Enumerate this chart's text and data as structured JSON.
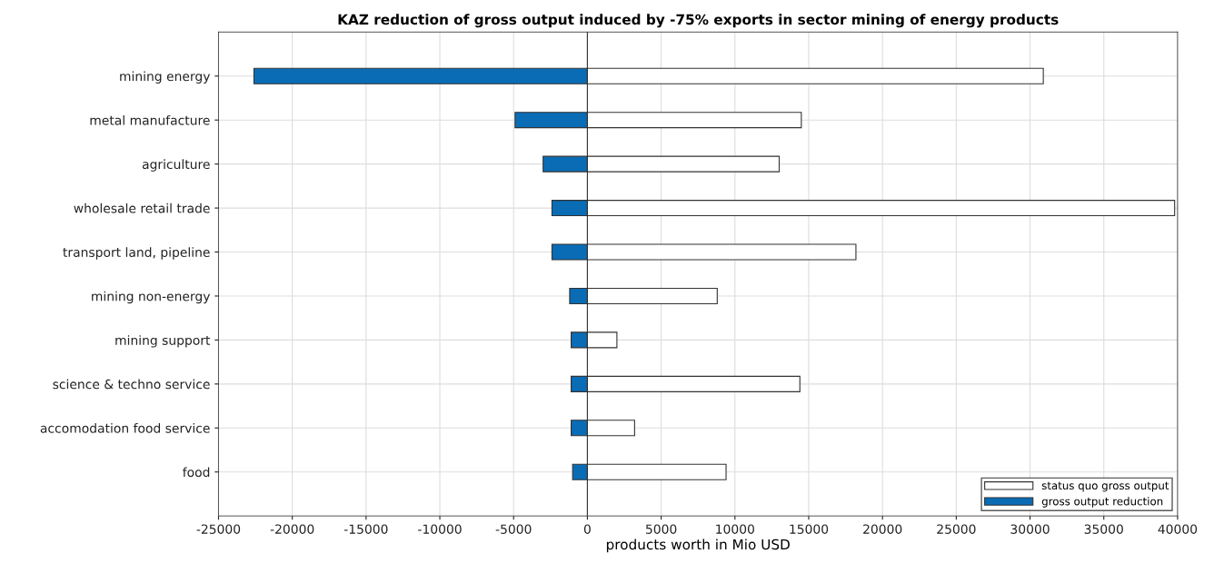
{
  "chart_data": {
    "type": "bar",
    "orientation": "horizontal",
    "title": "KAZ reduction of gross output induced by -75% exports in sector mining of energy products",
    "xlabel": "products worth in Mio USD",
    "categories": [
      "mining energy",
      "metal manufacture",
      "agriculture",
      "wholesale retail trade",
      "transport land, pipeline",
      "mining non-energy",
      "mining support",
      "science & techno service",
      "accomodation food service",
      "food"
    ],
    "series": [
      {
        "name": "status quo gross output",
        "color": "#ffffff",
        "values": [
          30900,
          14500,
          13000,
          39800,
          18200,
          8800,
          2000,
          14400,
          3200,
          9400
        ]
      },
      {
        "name": "gross output reduction",
        "color": "#0a6cb5",
        "values": [
          -22600,
          -4900,
          -3000,
          -2400,
          -2400,
          -1200,
          -1100,
          -1100,
          -1100,
          -1000
        ]
      }
    ],
    "xlim": [
      -25000,
      40000
    ],
    "xticks": [
      -25000,
      -20000,
      -15000,
      -10000,
      -5000,
      0,
      5000,
      10000,
      15000,
      20000,
      25000,
      30000,
      35000,
      40000
    ],
    "stacked": true,
    "grid": true,
    "legend": "bottom right"
  }
}
